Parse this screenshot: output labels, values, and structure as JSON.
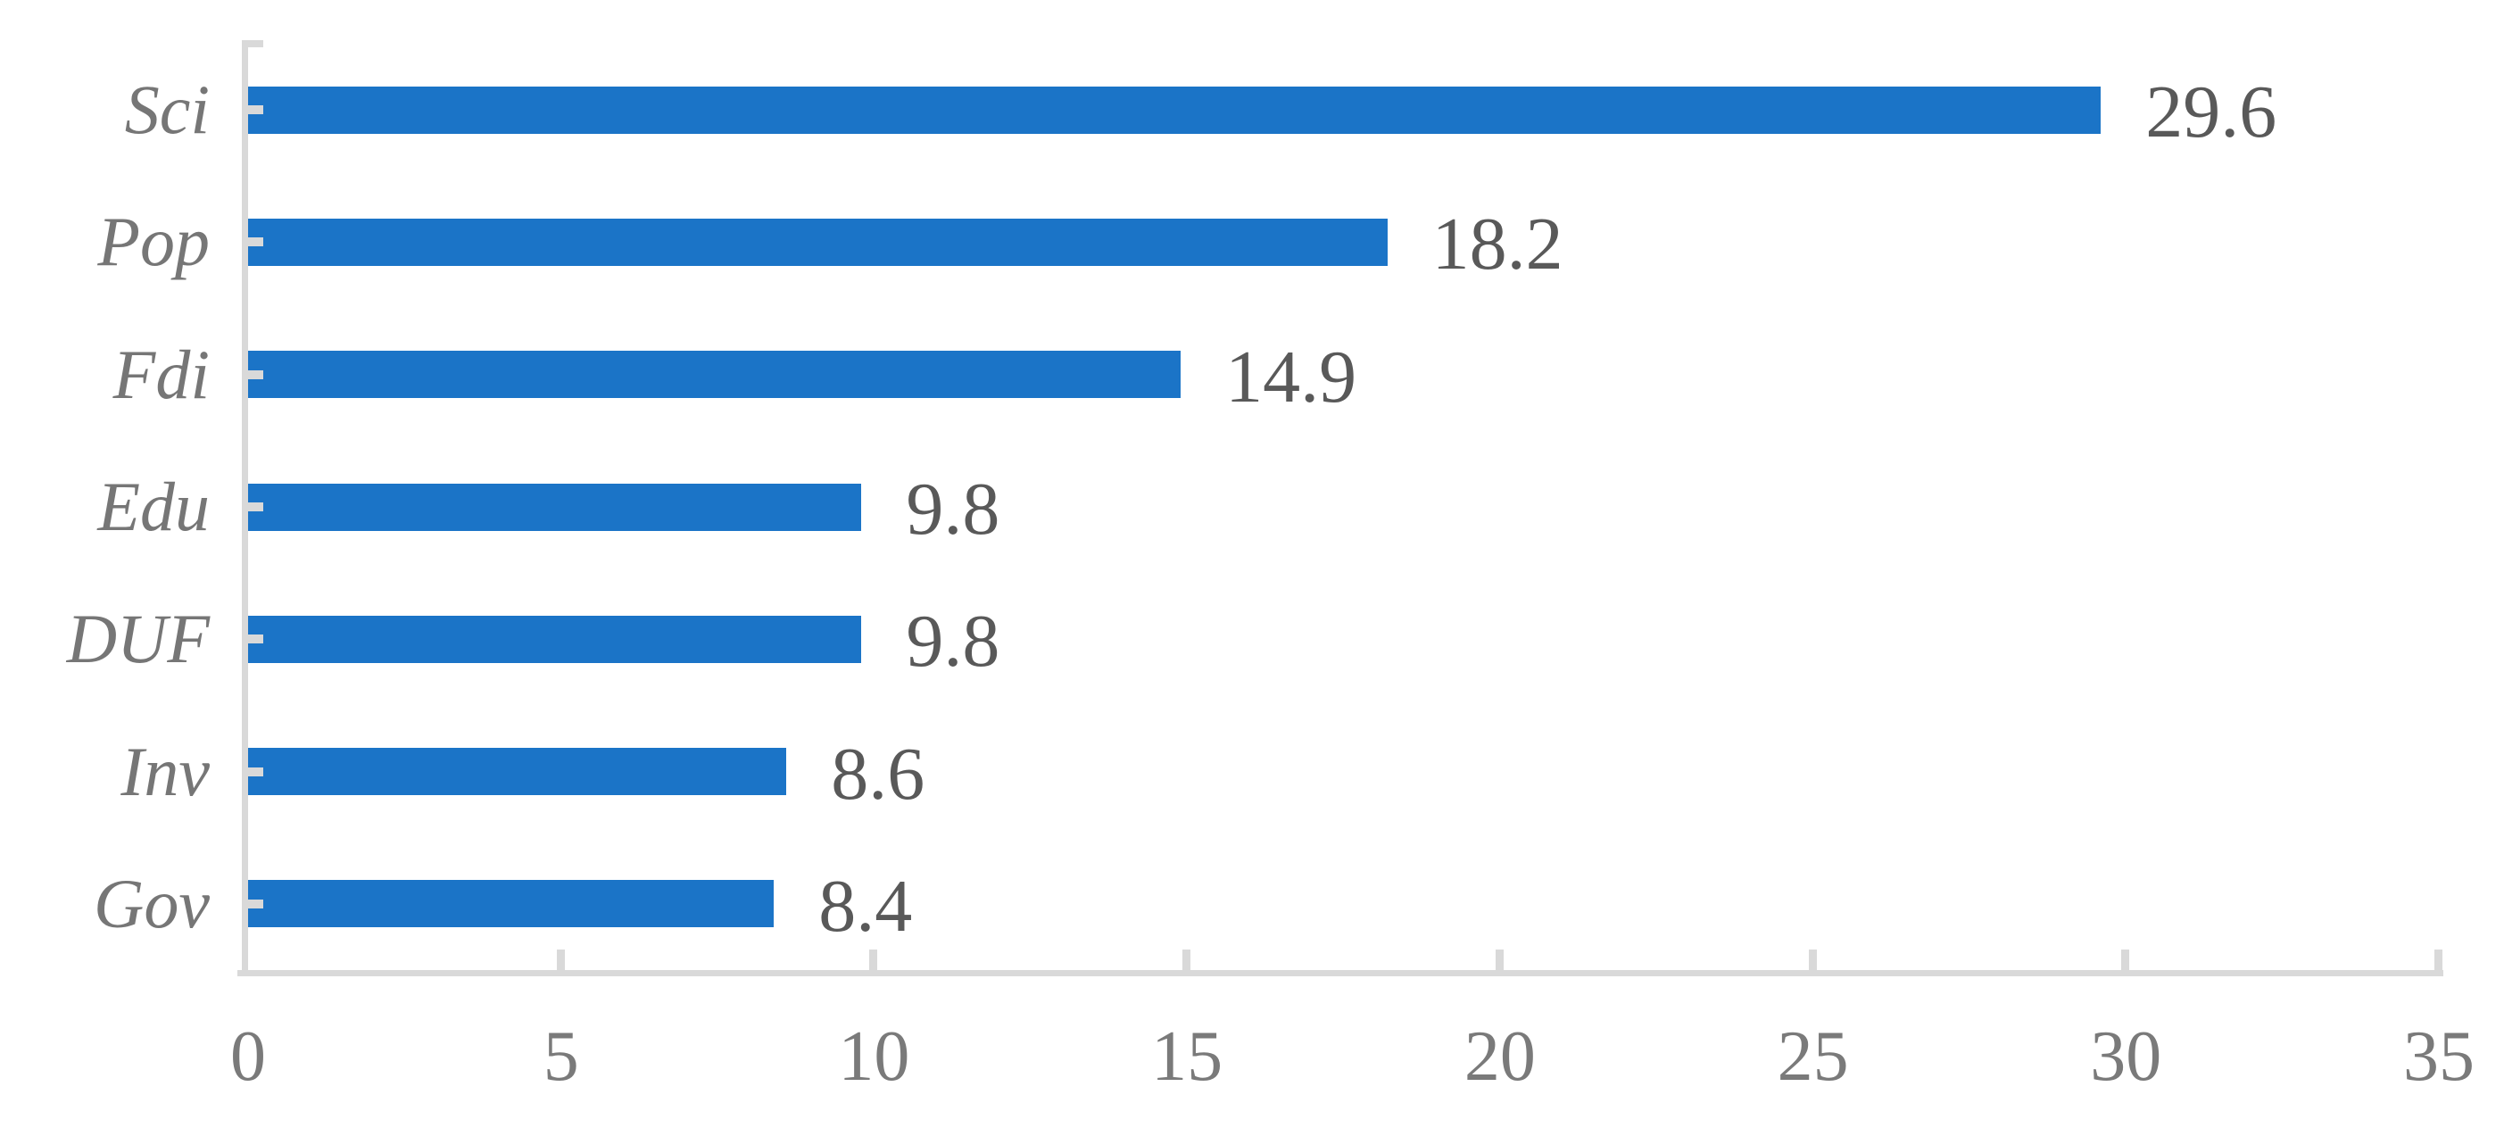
{
  "chart_data": {
    "type": "bar",
    "orientation": "horizontal",
    "title": "",
    "xlabel": "",
    "ylabel": "",
    "categories": [
      "Sci",
      "Pop",
      "Fdi",
      "Edu",
      "DUF",
      "Inv",
      "Gov"
    ],
    "values": [
      29.6,
      18.2,
      14.9,
      9.8,
      9.8,
      8.6,
      8.4
    ],
    "data_labels": [
      "29.6",
      "18.2",
      "14.9",
      "9.8",
      "9.8",
      "8.6",
      "8.4"
    ],
    "x_ticks": [
      0,
      5,
      10,
      15,
      20,
      25,
      30,
      35
    ],
    "x_tick_labels": [
      "0",
      "5",
      "10",
      "15",
      "20",
      "25",
      "30",
      "35"
    ],
    "xlim": [
      0,
      35
    ],
    "grid": false,
    "legend": "none",
    "colors": {
      "bar": "#1B74C7",
      "axis_line": "#D9D9D9",
      "category_label": "#767676",
      "data_label": "#595959",
      "tick_label": "#7A7A7A",
      "background": "#FFFFFF"
    }
  }
}
